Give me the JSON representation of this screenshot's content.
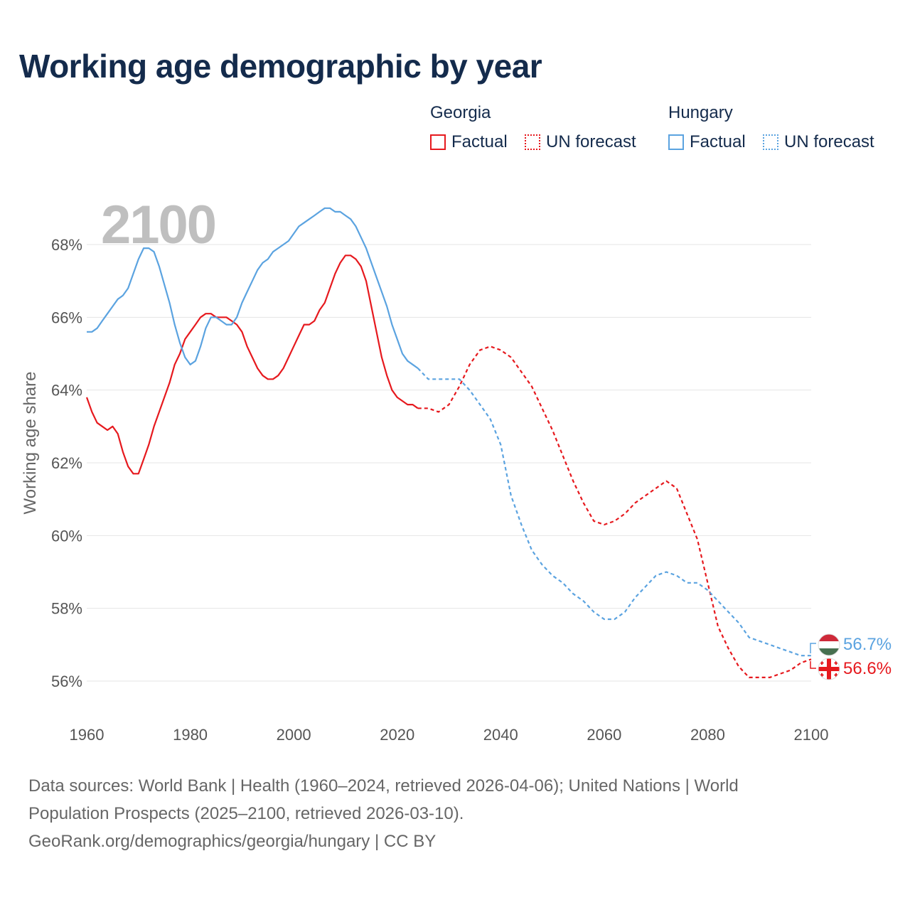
{
  "title": "Working age demographic by year",
  "legend": {
    "groups": [
      {
        "country": "Georgia",
        "color": "#e6191e",
        "items": [
          {
            "label": "Factual",
            "style": "solid"
          },
          {
            "label": "UN forecast",
            "style": "dotted"
          }
        ]
      },
      {
        "country": "Hungary",
        "color": "#5ba3e0",
        "items": [
          {
            "label": "Factual",
            "style": "solid"
          },
          {
            "label": "UN forecast",
            "style": "dotted"
          }
        ]
      }
    ]
  },
  "year_watermark": "2100",
  "end_labels": {
    "hungary": "56.7%",
    "georgia": "56.6%"
  },
  "footer": {
    "line1": "Data sources: World Bank | Health (1960–2024, retrieved 2026-04-06); United Nations | World",
    "line2": "Population Prospects (2025–2100, retrieved 2026-03-10).",
    "line3": "GeoRank.org/demographics/georgia/hungary | CC BY"
  },
  "colors": {
    "georgia": "#e6191e",
    "hungary": "#5ba3e0",
    "title": "#142b4c",
    "grid": "#e5e5e5",
    "watermark": "#bfbfbf"
  },
  "chart_data": {
    "type": "line",
    "title": "Working age demographic by year",
    "xlabel": "",
    "ylabel": "Working age share",
    "xlim": [
      1960,
      2100
    ],
    "ylim": [
      55,
      69.5
    ],
    "xticks": [
      1960,
      1980,
      2000,
      2020,
      2040,
      2060,
      2080,
      2100
    ],
    "xtick_labels": [
      "1960",
      "1980",
      "2000",
      "2020",
      "2040",
      "2060",
      "2080",
      "2100"
    ],
    "yticks": [
      56,
      58,
      60,
      62,
      64,
      66,
      68
    ],
    "ytick_labels": [
      "56%",
      "58%",
      "60%",
      "62%",
      "64%",
      "66%",
      "68%"
    ],
    "grid": true,
    "forecast_start": 2024,
    "series": [
      {
        "name": "Georgia",
        "color": "#e6191e",
        "x": [
          1960,
          1961,
          1962,
          1963,
          1964,
          1965,
          1966,
          1967,
          1968,
          1969,
          1970,
          1971,
          1972,
          1973,
          1974,
          1975,
          1976,
          1977,
          1978,
          1979,
          1980,
          1981,
          1982,
          1983,
          1984,
          1985,
          1986,
          1987,
          1988,
          1989,
          1990,
          1991,
          1992,
          1993,
          1994,
          1995,
          1996,
          1997,
          1998,
          1999,
          2000,
          2001,
          2002,
          2003,
          2004,
          2005,
          2006,
          2007,
          2008,
          2009,
          2010,
          2011,
          2012,
          2013,
          2014,
          2015,
          2016,
          2017,
          2018,
          2019,
          2020,
          2021,
          2022,
          2023,
          2024,
          2026,
          2028,
          2030,
          2032,
          2034,
          2036,
          2038,
          2040,
          2042,
          2044,
          2046,
          2048,
          2050,
          2052,
          2054,
          2056,
          2058,
          2060,
          2062,
          2064,
          2066,
          2068,
          2070,
          2072,
          2074,
          2076,
          2078,
          2080,
          2082,
          2084,
          2086,
          2088,
          2090,
          2092,
          2094,
          2096,
          2098,
          2100
        ],
        "values": [
          63.8,
          63.4,
          63.1,
          63.0,
          62.9,
          63.0,
          62.8,
          62.3,
          61.9,
          61.7,
          61.7,
          62.1,
          62.5,
          63.0,
          63.4,
          63.8,
          64.2,
          64.7,
          65.0,
          65.4,
          65.6,
          65.8,
          66.0,
          66.1,
          66.1,
          66.0,
          66.0,
          66.0,
          65.9,
          65.8,
          65.6,
          65.2,
          64.9,
          64.6,
          64.4,
          64.3,
          64.3,
          64.4,
          64.6,
          64.9,
          65.2,
          65.5,
          65.8,
          65.8,
          65.9,
          66.2,
          66.4,
          66.8,
          67.2,
          67.5,
          67.7,
          67.7,
          67.6,
          67.4,
          67.0,
          66.3,
          65.6,
          64.9,
          64.4,
          64.0,
          63.8,
          63.7,
          63.6,
          63.6,
          63.5,
          63.5,
          63.4,
          63.6,
          64.1,
          64.7,
          65.1,
          65.2,
          65.1,
          64.9,
          64.5,
          64.1,
          63.5,
          62.9,
          62.2,
          61.5,
          60.9,
          60.4,
          60.3,
          60.4,
          60.6,
          60.9,
          61.1,
          61.3,
          61.5,
          61.3,
          60.6,
          59.9,
          58.7,
          57.5,
          56.9,
          56.4,
          56.1,
          56.1,
          56.1,
          56.2,
          56.3,
          56.5,
          56.6
        ]
      },
      {
        "name": "Hungary",
        "color": "#5ba3e0",
        "x": [
          1960,
          1961,
          1962,
          1963,
          1964,
          1965,
          1966,
          1967,
          1968,
          1969,
          1970,
          1971,
          1972,
          1973,
          1974,
          1975,
          1976,
          1977,
          1978,
          1979,
          1980,
          1981,
          1982,
          1983,
          1984,
          1985,
          1986,
          1987,
          1988,
          1989,
          1990,
          1991,
          1992,
          1993,
          1994,
          1995,
          1996,
          1997,
          1998,
          1999,
          2000,
          2001,
          2002,
          2003,
          2004,
          2005,
          2006,
          2007,
          2008,
          2009,
          2010,
          2011,
          2012,
          2013,
          2014,
          2015,
          2016,
          2017,
          2018,
          2019,
          2020,
          2021,
          2022,
          2023,
          2024,
          2026,
          2028,
          2030,
          2032,
          2034,
          2036,
          2038,
          2040,
          2042,
          2044,
          2046,
          2048,
          2050,
          2052,
          2054,
          2056,
          2058,
          2060,
          2062,
          2064,
          2066,
          2068,
          2070,
          2072,
          2074,
          2076,
          2078,
          2080,
          2082,
          2084,
          2086,
          2088,
          2090,
          2092,
          2094,
          2096,
          2098,
          2100
        ],
        "values": [
          65.6,
          65.6,
          65.7,
          65.9,
          66.1,
          66.3,
          66.5,
          66.6,
          66.8,
          67.2,
          67.6,
          67.9,
          67.9,
          67.8,
          67.4,
          66.9,
          66.4,
          65.8,
          65.3,
          64.9,
          64.7,
          64.8,
          65.2,
          65.7,
          66.0,
          66.0,
          65.9,
          65.8,
          65.8,
          66.0,
          66.4,
          66.7,
          67.0,
          67.3,
          67.5,
          67.6,
          67.8,
          67.9,
          68.0,
          68.1,
          68.3,
          68.5,
          68.6,
          68.7,
          68.8,
          68.9,
          69.0,
          69.0,
          68.9,
          68.9,
          68.8,
          68.7,
          68.5,
          68.2,
          67.9,
          67.5,
          67.1,
          66.7,
          66.3,
          65.8,
          65.4,
          65.0,
          64.8,
          64.7,
          64.6,
          64.3,
          64.3,
          64.3,
          64.3,
          64.0,
          63.6,
          63.2,
          62.5,
          61.1,
          60.3,
          59.6,
          59.2,
          58.9,
          58.7,
          58.4,
          58.2,
          57.9,
          57.7,
          57.7,
          57.9,
          58.3,
          58.6,
          58.9,
          59.0,
          58.9,
          58.7,
          58.7,
          58.5,
          58.2,
          57.9,
          57.6,
          57.2,
          57.1,
          57.0,
          56.9,
          56.8,
          56.7,
          56.7
        ]
      }
    ]
  }
}
